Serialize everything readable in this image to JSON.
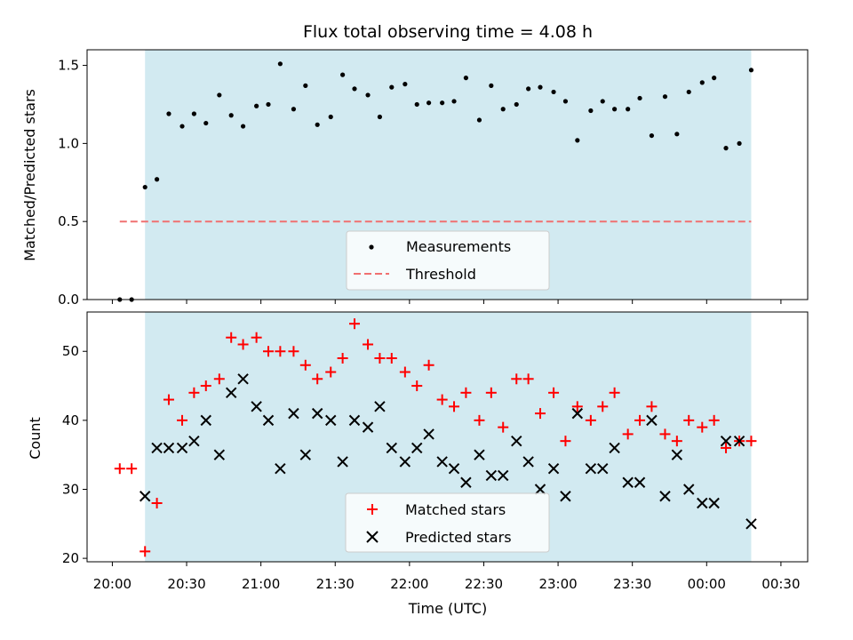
{
  "chart_data": {
    "type": "scatter",
    "title": "Flux total observing time = 4.08 h",
    "xlabel": "Time (UTC)",
    "x_unit": "hours after 20:00 UTC",
    "xlim": [
      -0.17,
      4.68
    ],
    "xticks": [
      {
        "x": 0.0,
        "label": "20:00"
      },
      {
        "x": 0.5,
        "label": "20:30"
      },
      {
        "x": 1.0,
        "label": "21:00"
      },
      {
        "x": 1.5,
        "label": "21:30"
      },
      {
        "x": 2.0,
        "label": "22:00"
      },
      {
        "x": 2.5,
        "label": "22:30"
      },
      {
        "x": 3.0,
        "label": "23:00"
      },
      {
        "x": 3.5,
        "label": "23:30"
      },
      {
        "x": 4.0,
        "label": "00:00"
      },
      {
        "x": 4.5,
        "label": "00:30"
      }
    ],
    "shaded_span": {
      "start": 0.22,
      "end": 4.3,
      "color": "#add8e6"
    },
    "top": {
      "ylabel": "Matched/Predicted stars",
      "ylim": [
        0.0,
        1.6
      ],
      "yticks": [
        {
          "v": 0.0,
          "label": "0.0"
        },
        {
          "v": 0.5,
          "label": "0.5"
        },
        {
          "v": 1.0,
          "label": "1.0"
        },
        {
          "v": 1.5,
          "label": "1.5"
        }
      ],
      "threshold": {
        "name": "Threshold",
        "value": 0.5,
        "x_start": 0.05,
        "x_end": 4.3,
        "color": "#f07070"
      },
      "measurements": {
        "name": "Measurements",
        "color": "#000000",
        "points": [
          [
            0.05,
            0.0
          ],
          [
            0.13,
            0.0
          ],
          [
            0.22,
            0.72
          ],
          [
            0.3,
            0.77
          ],
          [
            0.38,
            1.19
          ],
          [
            0.47,
            1.11
          ],
          [
            0.55,
            1.19
          ],
          [
            0.63,
            1.13
          ],
          [
            0.72,
            1.31
          ],
          [
            0.8,
            1.18
          ],
          [
            0.88,
            1.11
          ],
          [
            0.97,
            1.24
          ],
          [
            1.05,
            1.25
          ],
          [
            1.13,
            1.51
          ],
          [
            1.22,
            1.22
          ],
          [
            1.3,
            1.37
          ],
          [
            1.38,
            1.12
          ],
          [
            1.47,
            1.17
          ],
          [
            1.55,
            1.44
          ],
          [
            1.63,
            1.35
          ],
          [
            1.72,
            1.31
          ],
          [
            1.8,
            1.17
          ],
          [
            1.88,
            1.36
          ],
          [
            1.97,
            1.38
          ],
          [
            2.05,
            1.25
          ],
          [
            2.13,
            1.26
          ],
          [
            2.22,
            1.26
          ],
          [
            2.3,
            1.27
          ],
          [
            2.38,
            1.42
          ],
          [
            2.47,
            1.15
          ],
          [
            2.55,
            1.37
          ],
          [
            2.63,
            1.22
          ],
          [
            2.72,
            1.25
          ],
          [
            2.8,
            1.35
          ],
          [
            2.88,
            1.36
          ],
          [
            2.97,
            1.33
          ],
          [
            3.05,
            1.27
          ],
          [
            3.13,
            1.02
          ],
          [
            3.22,
            1.21
          ],
          [
            3.3,
            1.27
          ],
          [
            3.38,
            1.22
          ],
          [
            3.47,
            1.22
          ],
          [
            3.55,
            1.29
          ],
          [
            3.63,
            1.05
          ],
          [
            3.72,
            1.3
          ],
          [
            3.8,
            1.06
          ],
          [
            3.88,
            1.33
          ],
          [
            3.97,
            1.39
          ],
          [
            4.05,
            1.42
          ],
          [
            4.13,
            0.97
          ],
          [
            4.22,
            1.0
          ],
          [
            4.3,
            1.47
          ]
        ]
      }
    },
    "bottom": {
      "ylabel": "Count",
      "ylim": [
        19.5,
        55.7
      ],
      "yticks": [
        {
          "v": 20,
          "label": "20"
        },
        {
          "v": 30,
          "label": "30"
        },
        {
          "v": 40,
          "label": "40"
        },
        {
          "v": 50,
          "label": "50"
        }
      ],
      "series": [
        {
          "name": "Matched stars",
          "marker": "+",
          "color": "#ff0000",
          "points": [
            [
              0.05,
              33
            ],
            [
              0.13,
              33
            ],
            [
              0.22,
              21
            ],
            [
              0.3,
              28
            ],
            [
              0.38,
              43
            ],
            [
              0.47,
              40
            ],
            [
              0.55,
              44
            ],
            [
              0.63,
              45
            ],
            [
              0.72,
              46
            ],
            [
              0.8,
              52
            ],
            [
              0.88,
              51
            ],
            [
              0.97,
              52
            ],
            [
              1.05,
              50
            ],
            [
              1.13,
              50
            ],
            [
              1.22,
              50
            ],
            [
              1.3,
              48
            ],
            [
              1.38,
              46
            ],
            [
              1.47,
              47
            ],
            [
              1.55,
              49
            ],
            [
              1.63,
              54
            ],
            [
              1.72,
              51
            ],
            [
              1.8,
              49
            ],
            [
              1.88,
              49
            ],
            [
              1.97,
              47
            ],
            [
              2.05,
              45
            ],
            [
              2.13,
              48
            ],
            [
              2.22,
              43
            ],
            [
              2.3,
              42
            ],
            [
              2.38,
              44
            ],
            [
              2.47,
              40
            ],
            [
              2.55,
              44
            ],
            [
              2.63,
              39
            ],
            [
              2.72,
              46
            ],
            [
              2.8,
              46
            ],
            [
              2.88,
              41
            ],
            [
              2.97,
              44
            ],
            [
              3.05,
              37
            ],
            [
              3.13,
              42
            ],
            [
              3.22,
              40
            ],
            [
              3.3,
              42
            ],
            [
              3.38,
              44
            ],
            [
              3.47,
              38
            ],
            [
              3.55,
              40
            ],
            [
              3.63,
              42
            ],
            [
              3.72,
              38
            ],
            [
              3.8,
              37
            ],
            [
              3.88,
              40
            ],
            [
              3.97,
              39
            ],
            [
              4.05,
              40
            ],
            [
              4.13,
              36
            ],
            [
              4.22,
              37
            ],
            [
              4.3,
              37
            ]
          ]
        },
        {
          "name": "Predicted stars",
          "marker": "x",
          "color": "#000000",
          "points": [
            [
              0.22,
              29
            ],
            [
              0.3,
              36
            ],
            [
              0.38,
              36
            ],
            [
              0.47,
              36
            ],
            [
              0.55,
              37
            ],
            [
              0.63,
              40
            ],
            [
              0.72,
              35
            ],
            [
              0.8,
              44
            ],
            [
              0.88,
              46
            ],
            [
              0.97,
              42
            ],
            [
              1.05,
              40
            ],
            [
              1.13,
              33
            ],
            [
              1.22,
              41
            ],
            [
              1.3,
              35
            ],
            [
              1.38,
              41
            ],
            [
              1.47,
              40
            ],
            [
              1.55,
              34
            ],
            [
              1.63,
              40
            ],
            [
              1.72,
              39
            ],
            [
              1.8,
              42
            ],
            [
              1.88,
              36
            ],
            [
              1.97,
              34
            ],
            [
              2.05,
              36
            ],
            [
              2.13,
              38
            ],
            [
              2.22,
              34
            ],
            [
              2.3,
              33
            ],
            [
              2.38,
              31
            ],
            [
              2.47,
              35
            ],
            [
              2.55,
              32
            ],
            [
              2.63,
              32
            ],
            [
              2.72,
              37
            ],
            [
              2.8,
              34
            ],
            [
              2.88,
              30
            ],
            [
              2.97,
              33
            ],
            [
              3.05,
              29
            ],
            [
              3.13,
              41
            ],
            [
              3.22,
              33
            ],
            [
              3.3,
              33
            ],
            [
              3.38,
              36
            ],
            [
              3.47,
              31
            ],
            [
              3.55,
              31
            ],
            [
              3.63,
              40
            ],
            [
              3.72,
              29
            ],
            [
              3.8,
              35
            ],
            [
              3.88,
              30
            ],
            [
              3.97,
              28
            ],
            [
              4.05,
              28
            ],
            [
              4.13,
              37
            ],
            [
              4.22,
              37
            ],
            [
              4.3,
              25
            ]
          ]
        }
      ]
    }
  }
}
